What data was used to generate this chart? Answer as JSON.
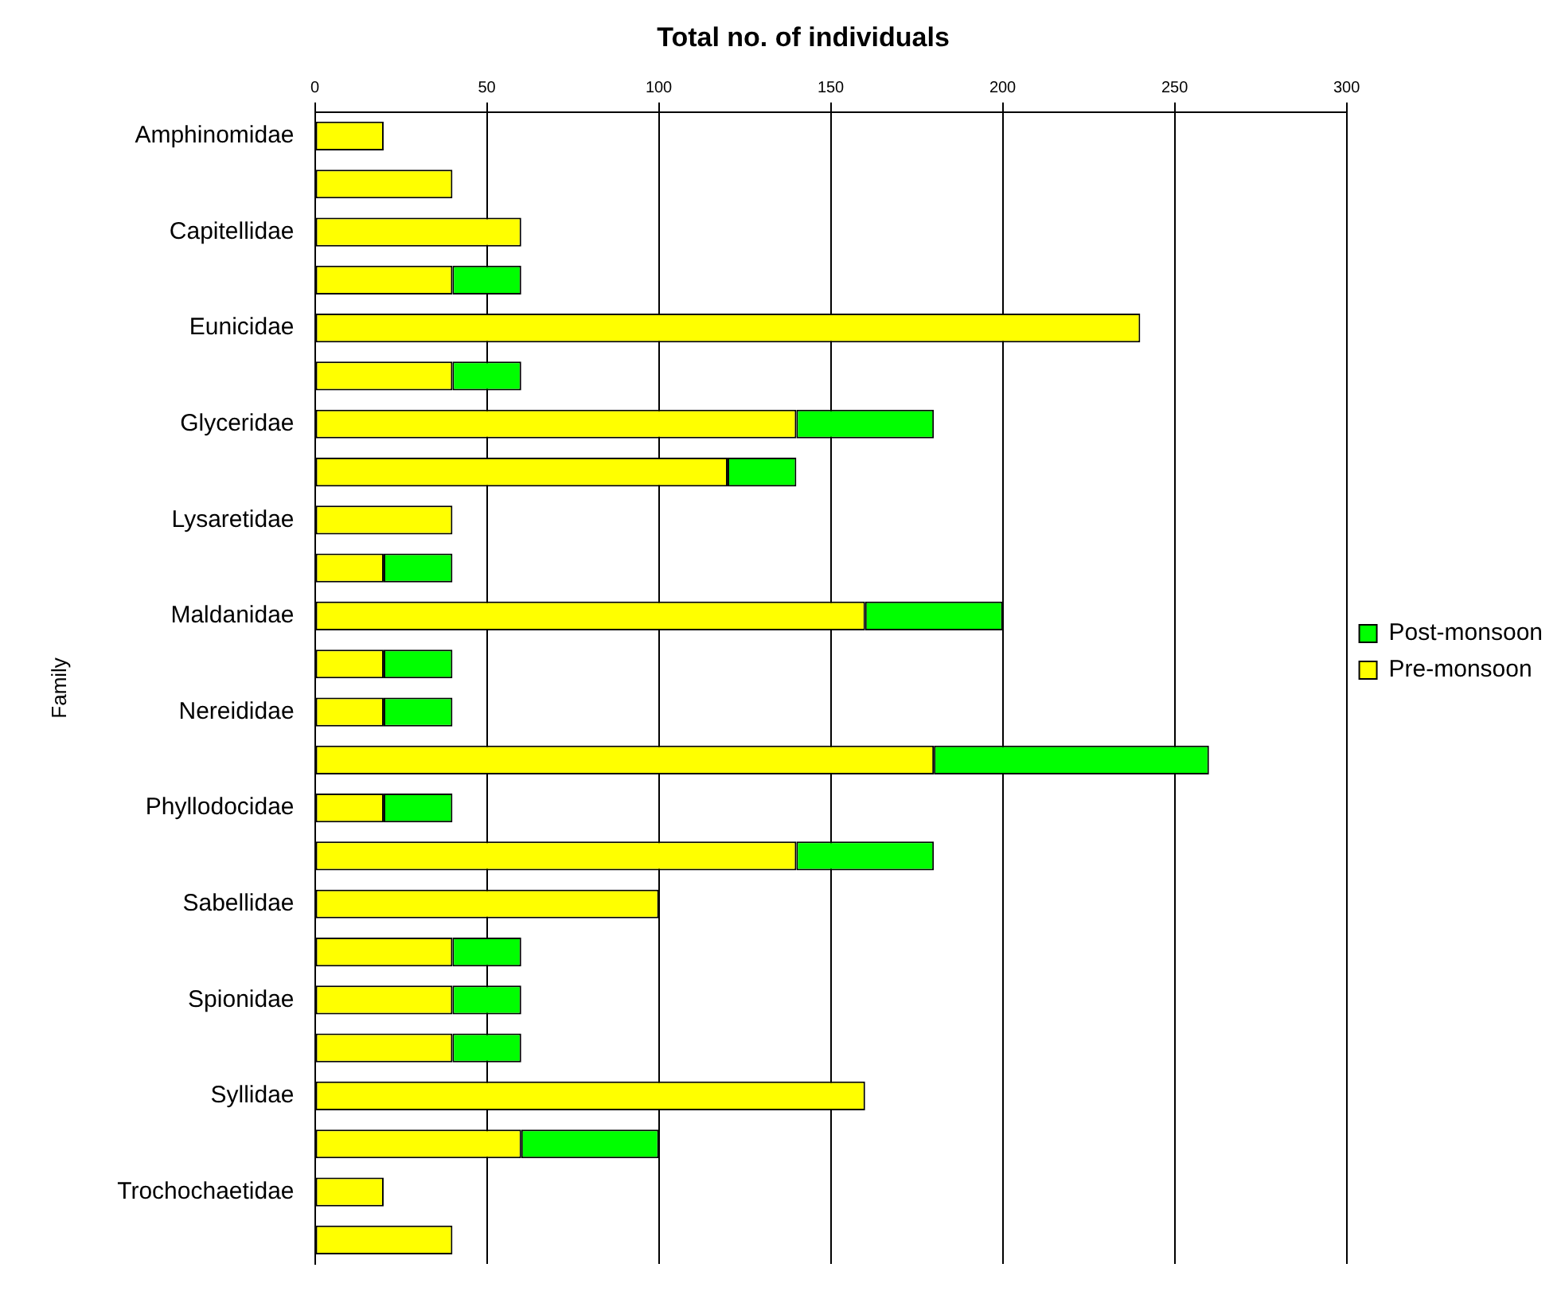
{
  "chart_data": {
    "type": "bar",
    "orientation": "horizontal",
    "stacked": true,
    "title": "Total no. of individuals",
    "ylabel": "Family",
    "categories": [
      "Amphinomidae",
      null,
      "Capitellidae",
      null,
      "Eunicidae",
      null,
      "Glyceridae",
      null,
      "Lysaretidae",
      null,
      "Maldanidae",
      null,
      "Nereididae",
      null,
      "Phyllodocidae",
      null,
      "Sabellidae",
      null,
      "Spionidae",
      null,
      "Syllidae",
      null,
      "Trochochaetidae",
      null
    ],
    "series": [
      {
        "name": "Pre-monsoon",
        "color": "#ffff00",
        "values": [
          20,
          40,
          60,
          40,
          240,
          40,
          140,
          120,
          40,
          20,
          160,
          20,
          20,
          180,
          20,
          140,
          100,
          40,
          40,
          40,
          160,
          60,
          20,
          40
        ]
      },
      {
        "name": "Post-monsoon",
        "color": "#00ff00",
        "values": [
          0,
          0,
          0,
          20,
          0,
          20,
          40,
          20,
          0,
          20,
          40,
          20,
          20,
          80,
          20,
          40,
          0,
          20,
          20,
          20,
          0,
          40,
          0,
          0
        ]
      }
    ],
    "xlim": [
      0,
      300
    ],
    "xticks": [
      0,
      50,
      100,
      150,
      200,
      250,
      300
    ],
    "grid": "x",
    "legend": "right"
  }
}
